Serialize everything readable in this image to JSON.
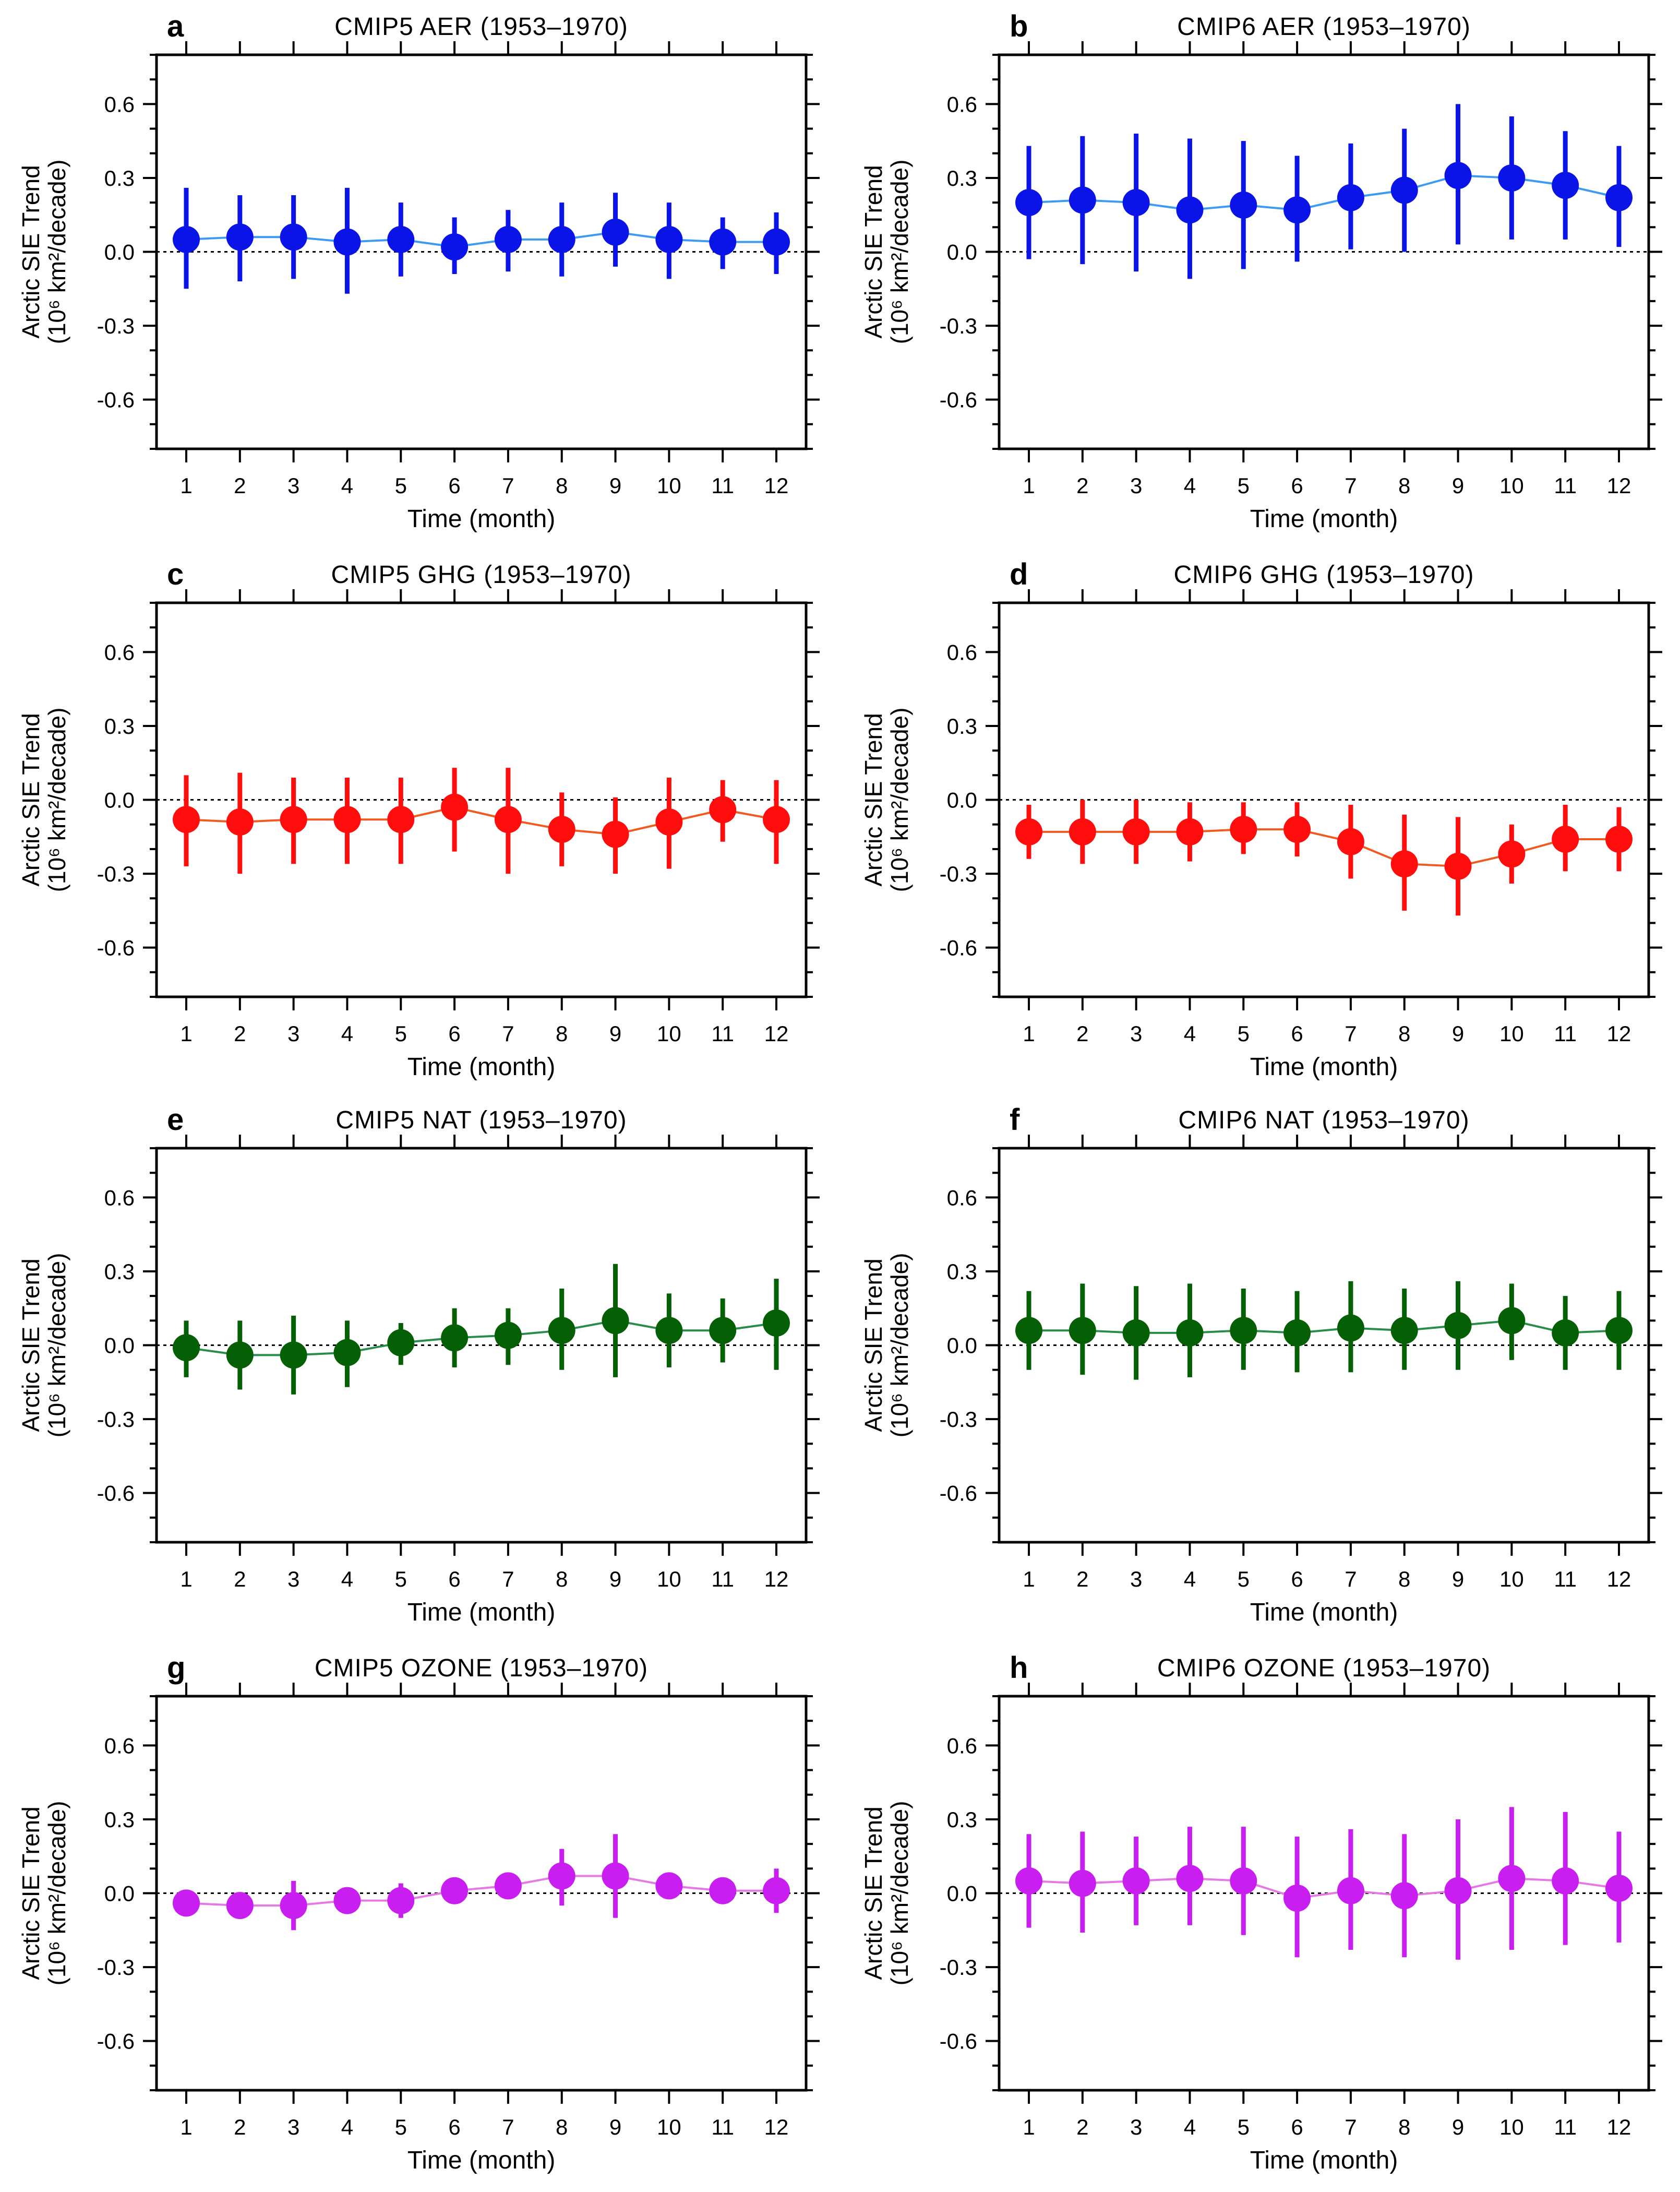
{
  "figure": {
    "xlabel": "Time (month)",
    "ylabel_line1": "Arctic SIE Trend",
    "ylabel_line2": "(10⁶ km²/decade)",
    "yticks": [
      "0.6",
      "0.3",
      "0.0",
      "-0.3",
      "-0.6"
    ],
    "xticks": [
      "1",
      "2",
      "3",
      "4",
      "5",
      "6",
      "7",
      "8",
      "9",
      "10",
      "11",
      "12"
    ]
  },
  "chart_data": [
    {
      "type": "line",
      "panel": "a",
      "title": "CMIP5 AER (1953–1970)",
      "x": [
        1,
        2,
        3,
        4,
        5,
        6,
        7,
        8,
        9,
        10,
        11,
        12
      ],
      "values": [
        0.05,
        0.06,
        0.06,
        0.04,
        0.05,
        0.02,
        0.05,
        0.05,
        0.08,
        0.05,
        0.04,
        0.04
      ],
      "err_low": [
        -0.15,
        -0.12,
        -0.11,
        -0.17,
        -0.1,
        -0.09,
        -0.08,
        -0.1,
        -0.06,
        -0.11,
        -0.07,
        -0.09
      ],
      "err_high": [
        0.26,
        0.23,
        0.23,
        0.26,
        0.2,
        0.14,
        0.17,
        0.2,
        0.24,
        0.2,
        0.14,
        0.16
      ],
      "color": "#0a14e6",
      "line_color": "#3c9bf0",
      "xlabel": "Time (month)",
      "ylabel": "Arctic SIE Trend (10^6 km^2/decade)",
      "ylim": [
        -0.8,
        0.8
      ]
    },
    {
      "type": "line",
      "panel": "b",
      "title": "CMIP6 AER (1953–1970)",
      "x": [
        1,
        2,
        3,
        4,
        5,
        6,
        7,
        8,
        9,
        10,
        11,
        12
      ],
      "values": [
        0.2,
        0.21,
        0.2,
        0.17,
        0.19,
        0.17,
        0.22,
        0.25,
        0.31,
        0.3,
        0.27,
        0.22
      ],
      "err_low": [
        -0.03,
        -0.05,
        -0.08,
        -0.11,
        -0.07,
        -0.04,
        0.01,
        0.0,
        0.03,
        0.05,
        0.05,
        0.02
      ],
      "err_high": [
        0.43,
        0.47,
        0.48,
        0.46,
        0.45,
        0.39,
        0.44,
        0.5,
        0.6,
        0.55,
        0.49,
        0.43
      ],
      "color": "#0a14e6",
      "line_color": "#3c9bf0",
      "xlabel": "Time (month)",
      "ylabel": "Arctic SIE Trend (10^6 km^2/decade)",
      "ylim": [
        -0.8,
        0.8
      ]
    },
    {
      "type": "line",
      "panel": "c",
      "title": "CMIP5 GHG (1953–1970)",
      "x": [
        1,
        2,
        3,
        4,
        5,
        6,
        7,
        8,
        9,
        10,
        11,
        12
      ],
      "values": [
        -0.08,
        -0.09,
        -0.08,
        -0.08,
        -0.08,
        -0.03,
        -0.08,
        -0.12,
        -0.14,
        -0.09,
        -0.04,
        -0.08
      ],
      "err_low": [
        -0.27,
        -0.3,
        -0.26,
        -0.26,
        -0.26,
        -0.21,
        -0.3,
        -0.27,
        -0.3,
        -0.28,
        -0.17,
        -0.26
      ],
      "err_high": [
        0.1,
        0.11,
        0.09,
        0.09,
        0.09,
        0.13,
        0.13,
        0.03,
        0.01,
        0.09,
        0.08,
        0.08
      ],
      "color": "#ff0d0d",
      "line_color": "#f05a1e",
      "xlabel": "Time (month)",
      "ylabel": "Arctic SIE Trend (10^6 km^2/decade)",
      "ylim": [
        -0.8,
        0.8
      ]
    },
    {
      "type": "line",
      "panel": "d",
      "title": "CMIP6 GHG (1953–1970)",
      "x": [
        1,
        2,
        3,
        4,
        5,
        6,
        7,
        8,
        9,
        10,
        11,
        12
      ],
      "values": [
        -0.13,
        -0.13,
        -0.13,
        -0.13,
        -0.12,
        -0.12,
        -0.17,
        -0.26,
        -0.27,
        -0.22,
        -0.16,
        -0.16
      ],
      "err_low": [
        -0.24,
        -0.26,
        -0.26,
        -0.25,
        -0.22,
        -0.23,
        -0.32,
        -0.45,
        -0.47,
        -0.34,
        -0.29,
        -0.29
      ],
      "err_high": [
        -0.02,
        0.0,
        0.0,
        -0.01,
        -0.01,
        -0.01,
        -0.02,
        -0.06,
        -0.07,
        -0.1,
        -0.02,
        -0.03
      ],
      "color": "#ff0d0d",
      "line_color": "#f05a1e",
      "xlabel": "Time (month)",
      "ylabel": "Arctic SIE Trend (10^6 km^2/decade)",
      "ylim": [
        -0.8,
        0.8
      ]
    },
    {
      "type": "line",
      "panel": "e",
      "title": "CMIP5 NAT (1953–1970)",
      "x": [
        1,
        2,
        3,
        4,
        5,
        6,
        7,
        8,
        9,
        10,
        11,
        12
      ],
      "values": [
        -0.01,
        -0.04,
        -0.04,
        -0.03,
        0.01,
        0.03,
        0.04,
        0.06,
        0.1,
        0.06,
        0.06,
        0.09
      ],
      "err_low": [
        -0.13,
        -0.18,
        -0.2,
        -0.17,
        -0.08,
        -0.09,
        -0.08,
        -0.1,
        -0.13,
        -0.09,
        -0.07,
        -0.1
      ],
      "err_high": [
        0.1,
        0.1,
        0.12,
        0.1,
        0.09,
        0.15,
        0.15,
        0.23,
        0.33,
        0.21,
        0.19,
        0.27
      ],
      "color": "#055f05",
      "line_color": "#2a8c4a",
      "xlabel": "Time (month)",
      "ylabel": "Arctic SIE Trend (10^6 km^2/decade)",
      "ylim": [
        -0.8,
        0.8
      ]
    },
    {
      "type": "line",
      "panel": "f",
      "title": "CMIP6 NAT (1953–1970)",
      "x": [
        1,
        2,
        3,
        4,
        5,
        6,
        7,
        8,
        9,
        10,
        11,
        12
      ],
      "values": [
        0.06,
        0.06,
        0.05,
        0.05,
        0.06,
        0.05,
        0.07,
        0.06,
        0.08,
        0.1,
        0.05,
        0.06
      ],
      "err_low": [
        -0.1,
        -0.12,
        -0.14,
        -0.13,
        -0.1,
        -0.11,
        -0.11,
        -0.1,
        -0.1,
        -0.06,
        -0.1,
        -0.1
      ],
      "err_high": [
        0.22,
        0.25,
        0.24,
        0.25,
        0.23,
        0.22,
        0.26,
        0.23,
        0.26,
        0.25,
        0.2,
        0.22
      ],
      "color": "#055f05",
      "line_color": "#2a8c4a",
      "xlabel": "Time (month)",
      "ylabel": "Arctic SIE Trend (10^6 km^2/decade)",
      "ylim": [
        -0.8,
        0.8
      ]
    },
    {
      "type": "line",
      "panel": "g",
      "title": "CMIP5 OZONE (1953–1970)",
      "x": [
        1,
        2,
        3,
        4,
        5,
        6,
        7,
        8,
        9,
        10,
        11,
        12
      ],
      "values": [
        -0.04,
        -0.05,
        -0.05,
        -0.03,
        -0.03,
        0.01,
        0.03,
        0.07,
        0.07,
        0.03,
        0.01,
        0.01
      ],
      "err_low": [
        -0.05,
        -0.06,
        -0.15,
        -0.06,
        -0.1,
        -0.02,
        0.0,
        -0.05,
        -0.1,
        -0.02,
        -0.03,
        -0.08
      ],
      "err_high": [
        -0.02,
        -0.03,
        0.05,
        0.0,
        0.04,
        0.04,
        0.06,
        0.18,
        0.24,
        0.07,
        0.06,
        0.1
      ],
      "color": "#c81ef0",
      "line_color": "#e678e6",
      "xlabel": "Time (month)",
      "ylabel": "Arctic SIE Trend (10^6 km^2/decade)",
      "ylim": [
        -0.8,
        0.8
      ]
    },
    {
      "type": "line",
      "panel": "h",
      "title": "CMIP6 OZONE (1953–1970)",
      "x": [
        1,
        2,
        3,
        4,
        5,
        6,
        7,
        8,
        9,
        10,
        11,
        12
      ],
      "values": [
        0.05,
        0.04,
        0.05,
        0.06,
        0.05,
        -0.02,
        0.01,
        -0.01,
        0.01,
        0.06,
        0.05,
        0.02
      ],
      "err_low": [
        -0.14,
        -0.16,
        -0.13,
        -0.13,
        -0.17,
        -0.26,
        -0.23,
        -0.26,
        -0.27,
        -0.23,
        -0.21,
        -0.2
      ],
      "err_high": [
        0.24,
        0.25,
        0.23,
        0.27,
        0.27,
        0.23,
        0.26,
        0.24,
        0.3,
        0.35,
        0.33,
        0.25
      ],
      "color": "#c81ef0",
      "line_color": "#e678e6",
      "xlabel": "Time (month)",
      "ylabel": "Arctic SIE Trend (10^6 km^2/decade)",
      "ylim": [
        -0.8,
        0.8
      ]
    }
  ]
}
